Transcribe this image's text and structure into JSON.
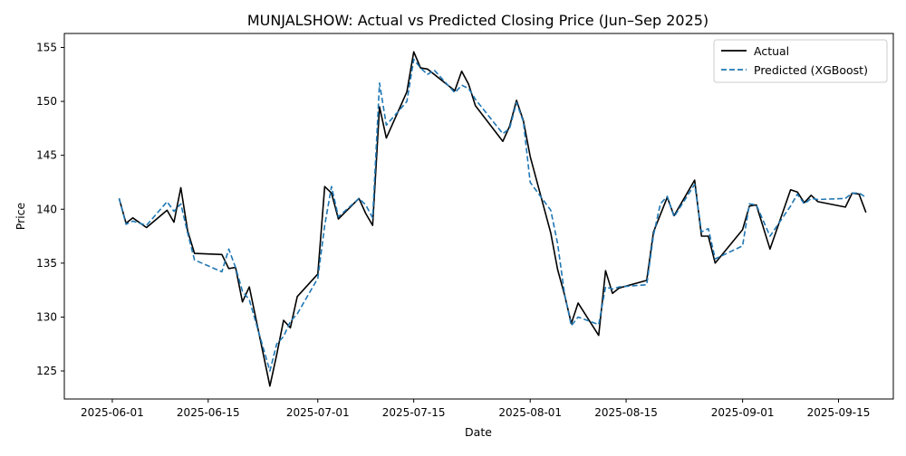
{
  "chart_data": {
    "type": "line",
    "title": "MUNJALSHOW: Actual vs Predicted Closing Price (Jun–Sep 2025)",
    "xlabel": "Date",
    "ylabel": "Price",
    "xlim": [
      "2025-05-25",
      "2025-09-23"
    ],
    "ylim": [
      122.4,
      156.3
    ],
    "x_ticks": [
      "2025-06-01",
      "2025-06-15",
      "2025-07-01",
      "2025-07-15",
      "2025-08-01",
      "2025-08-15",
      "2025-09-01",
      "2025-09-15"
    ],
    "y_ticks": [
      125,
      130,
      135,
      140,
      145,
      150,
      155
    ],
    "grid": false,
    "legend_position": "top-right",
    "x": [
      "2025-06-02",
      "2025-06-03",
      "2025-06-04",
      "2025-06-06",
      "2025-06-09",
      "2025-06-10",
      "2025-06-11",
      "2025-06-12",
      "2025-06-13",
      "2025-06-17",
      "2025-06-18",
      "2025-06-19",
      "2025-06-20",
      "2025-06-21",
      "2025-06-24",
      "2025-06-25",
      "2025-06-26",
      "2025-06-27",
      "2025-06-28",
      "2025-07-01",
      "2025-07-02",
      "2025-07-03",
      "2025-07-04",
      "2025-07-07",
      "2025-07-08",
      "2025-07-09",
      "2025-07-10",
      "2025-07-11",
      "2025-07-14",
      "2025-07-15",
      "2025-07-16",
      "2025-07-17",
      "2025-07-18",
      "2025-07-21",
      "2025-07-22",
      "2025-07-23",
      "2025-07-24",
      "2025-07-28",
      "2025-07-29",
      "2025-07-30",
      "2025-07-31",
      "2025-08-01",
      "2025-08-04",
      "2025-08-05",
      "2025-08-06",
      "2025-08-07",
      "2025-08-08",
      "2025-08-11",
      "2025-08-12",
      "2025-08-13",
      "2025-08-14",
      "2025-08-18",
      "2025-08-19",
      "2025-08-20",
      "2025-08-21",
      "2025-08-22",
      "2025-08-25",
      "2025-08-26",
      "2025-08-27",
      "2025-08-28",
      "2025-09-01",
      "2025-09-02",
      "2025-09-03",
      "2025-09-05",
      "2025-09-08",
      "2025-09-09",
      "2025-09-10",
      "2025-09-11",
      "2025-09-12",
      "2025-09-16",
      "2025-09-17",
      "2025-09-18",
      "2025-09-19"
    ],
    "series": [
      {
        "name": "Actual",
        "color": "#000000",
        "style": "solid",
        "values": [
          141.0,
          138.7,
          139.2,
          138.3,
          139.9,
          138.8,
          142.0,
          138.0,
          135.9,
          135.8,
          134.5,
          134.6,
          131.4,
          132.8,
          123.6,
          126.5,
          129.7,
          129.0,
          131.9,
          134.0,
          142.1,
          141.5,
          139.1,
          141.0,
          139.6,
          138.5,
          149.5,
          146.6,
          150.9,
          154.6,
          153.1,
          153.0,
          152.5,
          151.0,
          152.8,
          151.6,
          149.6,
          146.3,
          147.7,
          150.1,
          148.2,
          144.9,
          137.8,
          134.4,
          132.1,
          129.4,
          131.3,
          128.3,
          134.3,
          132.2,
          132.7,
          133.4,
          137.9,
          139.5,
          141.1,
          139.4,
          142.7,
          137.5,
          137.5,
          135.0,
          138.1,
          140.3,
          140.4,
          136.3,
          141.8,
          141.6,
          140.6,
          141.3,
          140.7,
          140.2,
          141.5,
          141.4,
          139.7
        ]
      },
      {
        "name": "Predicted (XGBoost)",
        "color": "#1f77b4",
        "style": "dashed",
        "values": [
          141.0,
          138.6,
          138.9,
          138.5,
          140.7,
          139.8,
          140.5,
          137.8,
          135.3,
          134.2,
          136.3,
          134.6,
          132.4,
          131.6,
          125.0,
          127.5,
          128.2,
          129.6,
          130.3,
          133.6,
          138.5,
          142.1,
          139.3,
          141.0,
          140.4,
          139.2,
          151.7,
          147.8,
          150.0,
          153.9,
          153.1,
          152.5,
          152.9,
          150.8,
          151.5,
          151.2,
          150.2,
          147.0,
          147.5,
          149.9,
          148.1,
          142.5,
          139.9,
          136.8,
          132.2,
          129.2,
          130.0,
          129.3,
          132.8,
          132.6,
          132.8,
          133.0,
          137.6,
          140.5,
          141.2,
          139.3,
          142.3,
          137.9,
          138.2,
          135.4,
          136.6,
          140.5,
          140.4,
          137.5,
          140.3,
          141.4,
          140.5,
          141.0,
          140.9,
          141.0,
          141.5,
          141.5,
          141.1
        ]
      }
    ]
  }
}
